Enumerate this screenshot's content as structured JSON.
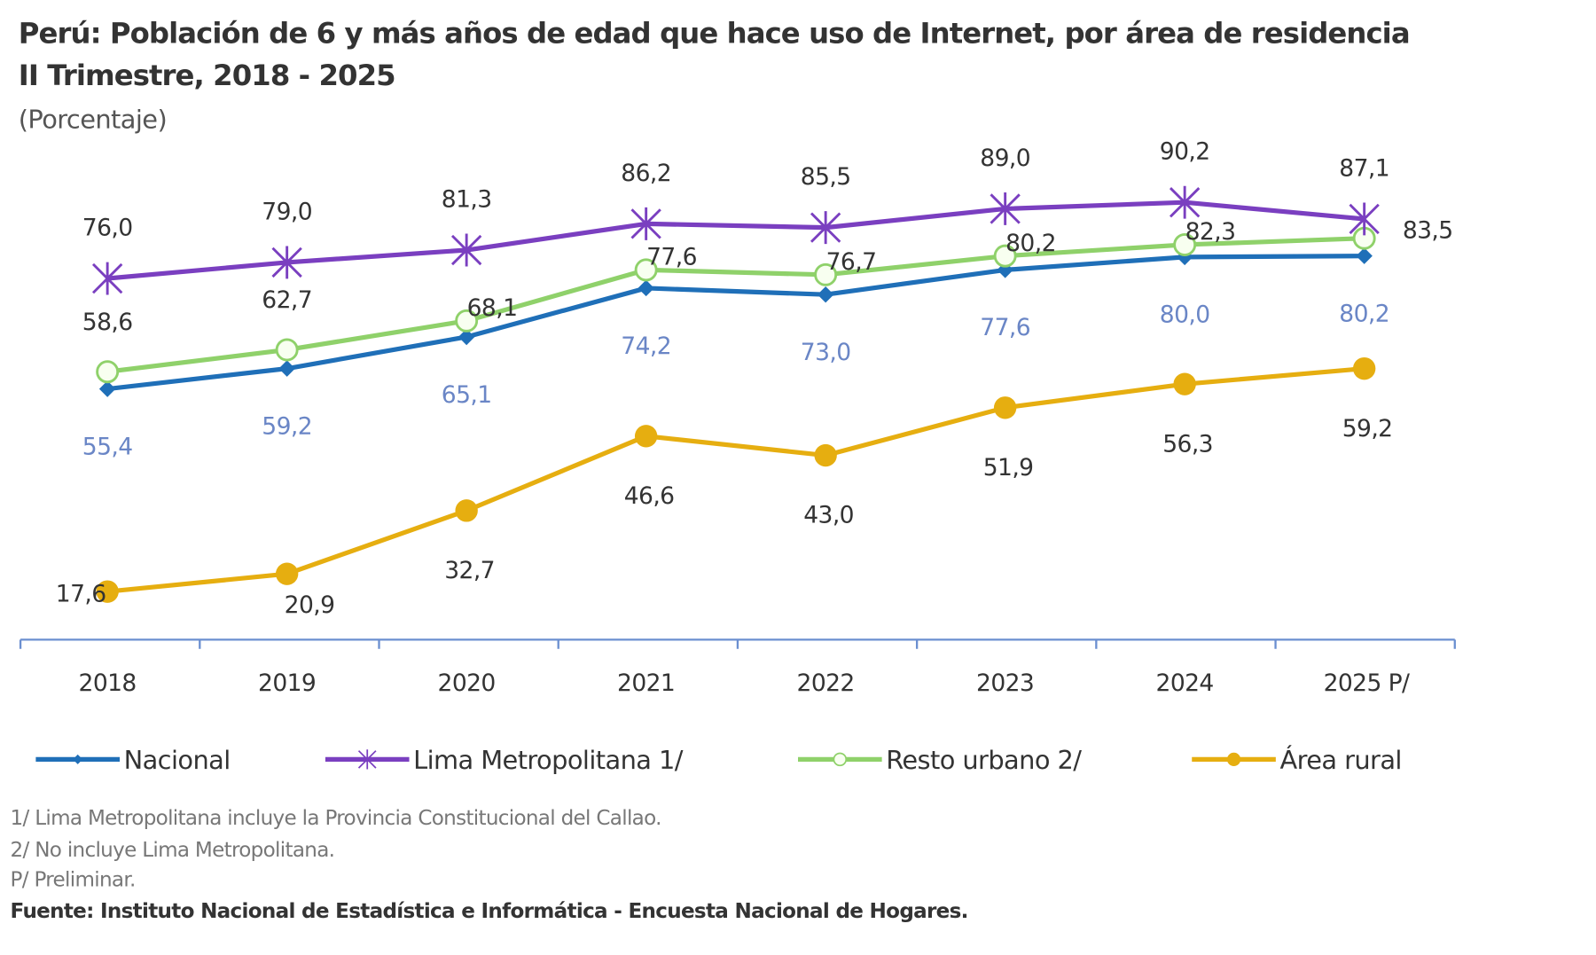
{
  "chart_data": {
    "type": "line",
    "title": "Perú: Población de 6 y más años de edad que hace uso de Internet, por área de residencia",
    "subtitle": "II Trimestre, 2018 - 2025",
    "unit": "(Porcentaje)",
    "categories": [
      "2018",
      "2019",
      "2020",
      "2021",
      "2022",
      "2023",
      "2024",
      "2025 P/"
    ],
    "ylim": [
      9,
      95
    ],
    "grid": false,
    "legend_position": "bottom",
    "series": [
      {
        "name": "Nacional",
        "values": [
          55.4,
          59.2,
          65.1,
          74.2,
          73.0,
          77.6,
          80.0,
          80.2
        ],
        "labels": [
          "55,4",
          "59,2",
          "65,1",
          "74,2",
          "73,0",
          "77,6",
          "80,0",
          "80,2"
        ],
        "color": "#1f6fb8",
        "marker": "diamond"
      },
      {
        "name": "Lima Metropolitana 1/",
        "values": [
          76.0,
          79.0,
          81.3,
          86.2,
          85.5,
          89.0,
          90.2,
          87.1
        ],
        "labels": [
          "76,0",
          "79,0",
          "81,3",
          "86,2",
          "85,5",
          "89,0",
          "90,2",
          "87,1"
        ],
        "color": "#7a3fc0",
        "marker": "asterisk"
      },
      {
        "name": "Resto urbano 2/",
        "values": [
          58.6,
          62.7,
          68.1,
          77.6,
          76.7,
          80.2,
          82.3,
          83.5
        ],
        "labels": [
          "58,6",
          "62,7",
          "68,1",
          "77,6",
          "76,7",
          "80,2",
          "82,3",
          "83,5"
        ],
        "color": "#8fd16a",
        "marker": "open-circle"
      },
      {
        "name": "Área rural",
        "values": [
          17.6,
          20.9,
          32.7,
          46.6,
          43.0,
          51.9,
          56.3,
          59.2
        ],
        "labels": [
          "17,6",
          "20,9",
          "32,7",
          "46,6",
          "43,0",
          "51,9",
          "56,3",
          "59,2"
        ],
        "color": "#e6ae10",
        "marker": "circle"
      }
    ],
    "notes": [
      "1/ Lima Metropolitana incluye la Provincia Constitucional del Callao.",
      "2/ No incluye Lima Metropolitana.",
      "P/ Preliminar."
    ],
    "source": "Fuente: Instituto Nacional de Estadística e Informática - Encuesta Nacional de Hogares."
  }
}
